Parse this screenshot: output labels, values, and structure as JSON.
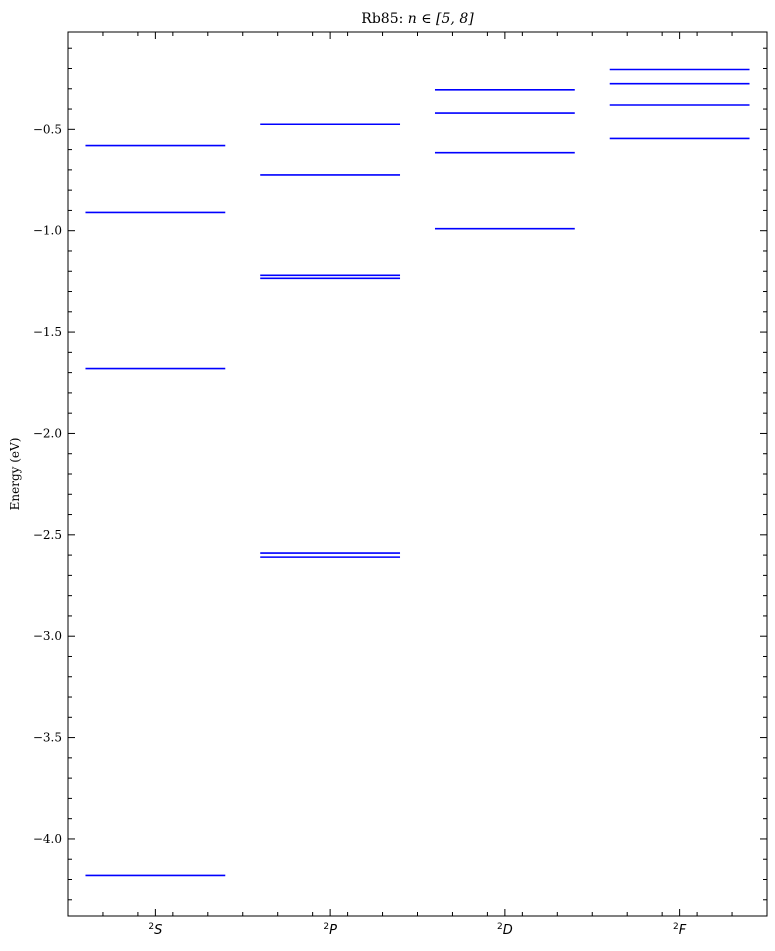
{
  "chart_data": {
    "type": "energy-level-diagram",
    "title": "Rb85: n ∈ [5, 8]",
    "title_parts": {
      "prefix": "Rb85: ",
      "math": "n ∈ [5, 8]"
    },
    "xlabel": "",
    "ylabel": "Energy (eV)",
    "ylim": [
      -4.38,
      -0.02
    ],
    "yticks": [
      -4.0,
      -3.5,
      -3.0,
      -2.5,
      -2.0,
      -1.5,
      -1.0,
      -0.5
    ],
    "ytick_labels": [
      "−4.0",
      "−3.5",
      "−3.0",
      "−2.5",
      "−2.0",
      "−1.5",
      "−1.0",
      "−0.5"
    ],
    "grid": false,
    "categories": [
      {
        "label": "²S",
        "superscript": "2",
        "letter": "S",
        "levels": [
          -4.18,
          -1.68,
          -0.91,
          -0.58
        ]
      },
      {
        "label": "²P",
        "superscript": "2",
        "letter": "P",
        "levels": [
          -2.61,
          -2.59,
          -1.235,
          -1.22,
          -0.725,
          -0.475
        ]
      },
      {
        "label": "²D",
        "superscript": "2",
        "letter": "D",
        "levels": [
          -0.99,
          -0.615,
          -0.42,
          -0.305
        ]
      },
      {
        "label": "²F",
        "superscript": "2",
        "letter": "F",
        "levels": [
          -0.545,
          -0.38,
          -0.275,
          -0.205
        ]
      }
    ],
    "line_color": "#0000ff"
  }
}
